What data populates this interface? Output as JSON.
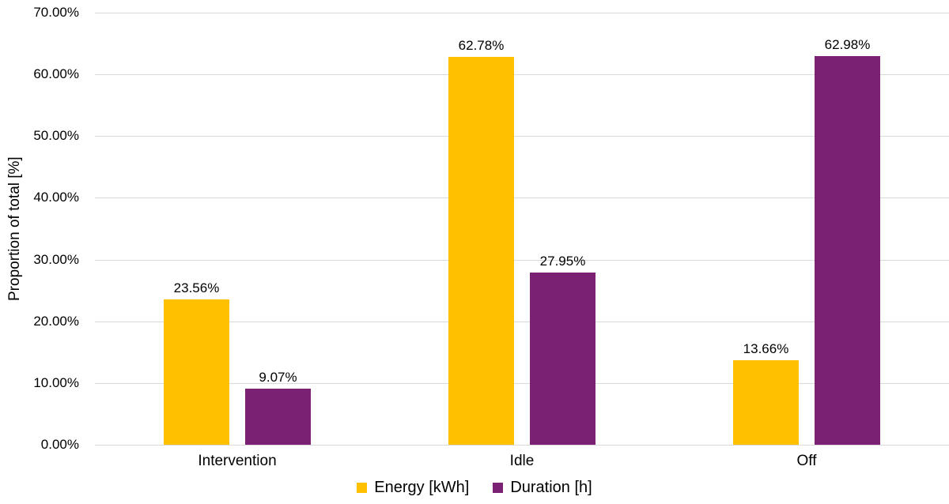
{
  "chart_data": {
    "type": "bar",
    "title": "",
    "categories": [
      "Intervention",
      "Idle",
      "Off"
    ],
    "series": [
      {
        "name": "Energy [kWh]",
        "color": "#FFC000",
        "values": [
          23.56,
          62.78,
          13.66
        ],
        "labels": [
          "23.56%",
          "62.78%",
          "13.66%"
        ]
      },
      {
        "name": "Duration [h]",
        "color": "#7A2174",
        "values": [
          9.07,
          27.95,
          62.98
        ],
        "labels": [
          "9.07%",
          "27.95%",
          "62.98%"
        ]
      }
    ],
    "xlabel": "",
    "ylabel": "Proportion of total [%]",
    "ylim": [
      0,
      70
    ],
    "ytick_step": 10,
    "ytick_labels": [
      "0.00%",
      "10.00%",
      "20.00%",
      "30.00%",
      "40.00%",
      "50.00%",
      "60.00%",
      "70.00%"
    ],
    "grid": true,
    "legend_position": "bottom",
    "gridline_color": "#D9D9D9",
    "text_color": "#000000"
  }
}
